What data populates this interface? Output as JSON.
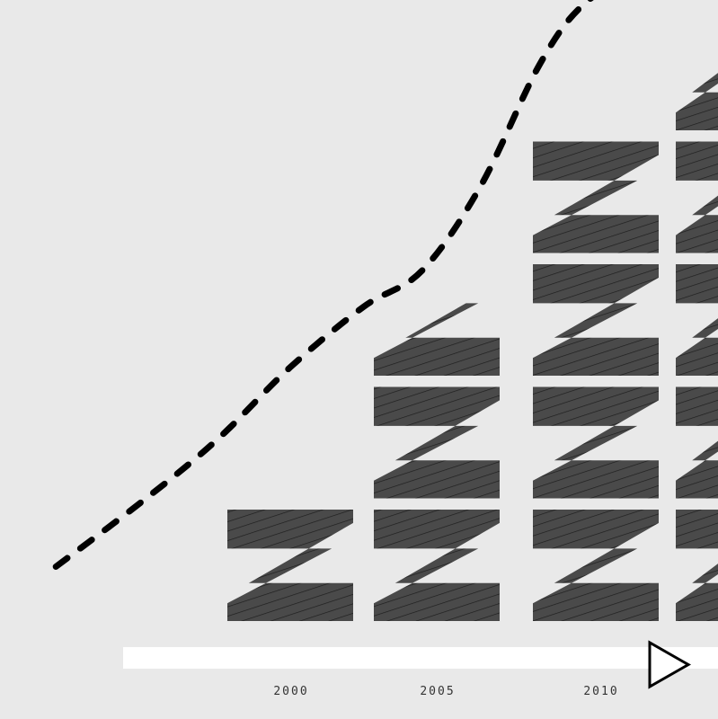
{
  "chart_data": {
    "type": "bar",
    "categories": [
      "2000",
      "2005",
      "2010",
      ""
    ],
    "tick_labels": [
      "2000",
      "2005",
      "2010"
    ],
    "unit_value": 1,
    "values": [
      1,
      2.5,
      4,
      4.6
    ],
    "trend_line": {
      "style": "dashed",
      "x": [
        -1.6,
        -1.0,
        -0.5,
        0.0,
        0.5,
        0.9,
        1.3,
        1.7,
        2.0,
        2.4,
        2.7,
        3.0,
        3.3,
        3.4,
        3.7
      ],
      "y": [
        0.45,
        1.0,
        1.5,
        2.1,
        2.6,
        2.9,
        3.6,
        4.6,
        5.1,
        5.4,
        5.6,
        5.6,
        5.7,
        5.8,
        6.3
      ]
    },
    "ylim": [
      0,
      6.5
    ],
    "grid": false,
    "legend": "none",
    "play_icon": "play-icon",
    "colors": {
      "background": "#e9e9e9",
      "bar": "#4a4a4a",
      "hatch": "#1e1e1e",
      "gap": "#e9e9e9",
      "axis_bar": "#ffffff",
      "line": "#000000",
      "tick_text": "#333333"
    }
  }
}
